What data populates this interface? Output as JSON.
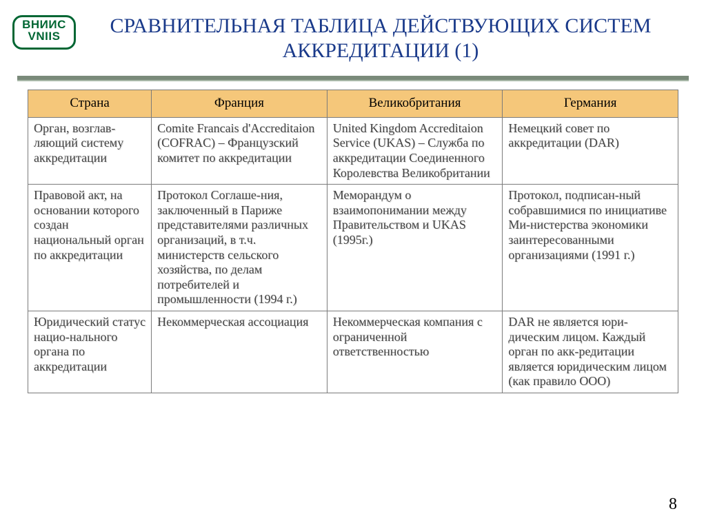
{
  "logo": {
    "line1": "ВНИИС",
    "line2": "VNIIS"
  },
  "title": "СРАВНИТЕЛЬНАЯ ТАБЛИЦА ДЕЙСТВУЮЩИХ СИСТЕМ АККРЕДИТАЦИИ (1)",
  "table": {
    "columns": [
      "Страна",
      "Франция",
      "Великобритания",
      "Германия"
    ],
    "col_widths_pct": [
      19,
      27,
      27,
      27
    ],
    "header_bg": "#f5c77a",
    "border_color": "#7a7a7a",
    "cell_text_color": "#444444",
    "cell_shadow_color": "#dcdcdc",
    "cell_fontsize_pt": 14,
    "header_fontsize_pt": 14,
    "rows": [
      [
        "Орган, возглав-ляющий систему аккредитации",
        "Comite Francais d'Accreditaion (COFRAC) – Французский комитет по аккредитации",
        "United Kingdom Accreditaion Service (UKAS) –\nСлужба по аккредитации Соединенного Королевства Великобритании",
        "Немецкий совет по аккредитации\n(DAR)"
      ],
      [
        "Правовой акт, на основании которого создан национальный орган по аккредитации",
        "Протокол Соглаше-ния, заключенный в Париже представителями различных организаций, в т.ч. министерств сельского хозяйства, по делам потребителей и промышленности (1994 г.)",
        "Меморандум о взаимопонимании между Правительством и UKAS (1995г.)",
        "Протокол, подписан-ный собравшимися по инициативе Ми-нистерства экономики заинтересованными организациями (1991 г.)"
      ],
      [
        "Юридический статус нацио-нального органа по аккредитации",
        "Некоммерческая ассоциация",
        "Некоммерческая компания с ограниченной ответственностью",
        "DAR не является юри-дическим лицом. Каждый орган по акк-редитации является юридическим лицом (как правило ООО)"
      ]
    ]
  },
  "colors": {
    "title_color": "#1a3a8a",
    "logo_border": "#006633",
    "logo_text": "#006633",
    "rule_dark": "#7a8a7a",
    "rule_light": "#a8b8a8",
    "background": "#ffffff"
  },
  "page_number": "8"
}
